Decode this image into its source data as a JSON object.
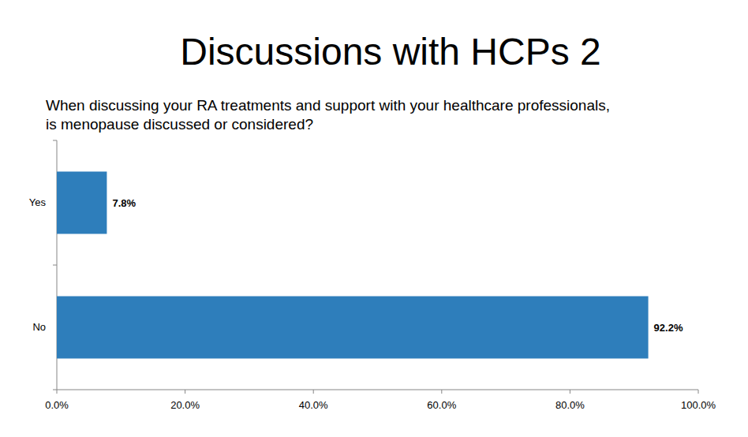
{
  "chart_data": {
    "type": "bar",
    "orientation": "horizontal",
    "title": "Discussions with HCPs 2",
    "subtitle": "When discussing your RA treatments and support with your healthcare professionals,\nis menopause discussed or considered?",
    "categories": [
      "Yes",
      "No"
    ],
    "values": [
      7.8,
      92.2
    ],
    "value_labels": [
      "7.8%",
      "92.2%"
    ],
    "color": "#2e7ebb",
    "xlim": [
      0,
      100
    ],
    "xticks": [
      {
        "value": 0,
        "label": "0.0%"
      },
      {
        "value": 20,
        "label": "20.0%"
      },
      {
        "value": 40,
        "label": "40.0%"
      },
      {
        "value": 60,
        "label": "60.0%"
      },
      {
        "value": 80,
        "label": "80.0%"
      },
      {
        "value": 100,
        "label": "100.0%"
      }
    ],
    "grid": false,
    "data_labels": true
  }
}
